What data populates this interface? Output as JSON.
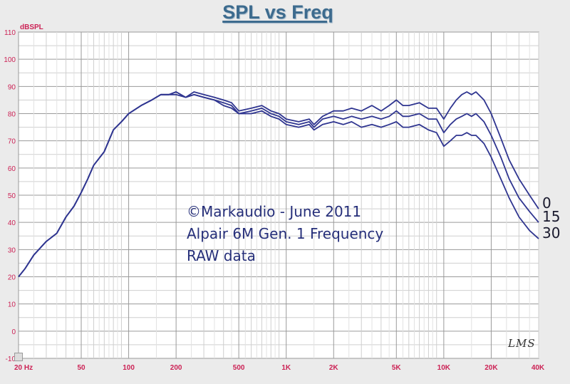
{
  "chart_data": {
    "type": "line",
    "title": "SPL vs Freq",
    "ylabel": "dBSPL",
    "ylim": [
      -10,
      110
    ],
    "xlim": [
      20,
      40000
    ],
    "xscale": "log",
    "grid": true,
    "y_ticks": [
      "110",
      "100",
      "90",
      "80",
      "70",
      "60",
      "50",
      "40",
      "30",
      "20",
      "10",
      "0",
      "-10"
    ],
    "x_ticks": [
      {
        "f": 20,
        "label": "20 Hz"
      },
      {
        "f": 50,
        "label": "50"
      },
      {
        "f": 100,
        "label": "100"
      },
      {
        "f": 200,
        "label": "200"
      },
      {
        "f": 500,
        "label": "500"
      },
      {
        "f": 1000,
        "label": "1K"
      },
      {
        "f": 2000,
        "label": "2K"
      },
      {
        "f": 5000,
        "label": "5K"
      },
      {
        "f": 10000,
        "label": "10K"
      },
      {
        "f": 20000,
        "label": "20K"
      },
      {
        "f": 40000,
        "label": "40K"
      }
    ],
    "series": [
      {
        "name": "0",
        "color": "#2f3590",
        "points": [
          [
            20,
            20
          ],
          [
            22,
            23
          ],
          [
            25,
            28
          ],
          [
            30,
            33
          ],
          [
            35,
            36
          ],
          [
            40,
            42
          ],
          [
            45,
            46
          ],
          [
            50,
            51
          ],
          [
            55,
            56
          ],
          [
            60,
            61
          ],
          [
            70,
            66
          ],
          [
            80,
            74
          ],
          [
            90,
            77
          ],
          [
            100,
            80
          ],
          [
            120,
            83
          ],
          [
            140,
            85
          ],
          [
            160,
            87
          ],
          [
            180,
            87
          ],
          [
            200,
            88
          ],
          [
            230,
            86
          ],
          [
            260,
            88
          ],
          [
            300,
            87
          ],
          [
            350,
            86
          ],
          [
            400,
            85
          ],
          [
            450,
            84
          ],
          [
            500,
            81
          ],
          [
            600,
            82
          ],
          [
            700,
            83
          ],
          [
            800,
            81
          ],
          [
            900,
            80
          ],
          [
            1000,
            78
          ],
          [
            1200,
            77
          ],
          [
            1400,
            78
          ],
          [
            1500,
            76
          ],
          [
            1700,
            79
          ],
          [
            2000,
            81
          ],
          [
            2300,
            81
          ],
          [
            2600,
            82
          ],
          [
            3000,
            81
          ],
          [
            3500,
            83
          ],
          [
            4000,
            81
          ],
          [
            4500,
            83
          ],
          [
            5000,
            85
          ],
          [
            5500,
            83
          ],
          [
            6000,
            83
          ],
          [
            7000,
            84
          ],
          [
            8000,
            82
          ],
          [
            9000,
            82
          ],
          [
            10000,
            78
          ],
          [
            11000,
            82
          ],
          [
            12000,
            85
          ],
          [
            13000,
            87
          ],
          [
            14000,
            88
          ],
          [
            15000,
            87
          ],
          [
            16000,
            88
          ],
          [
            18000,
            85
          ],
          [
            20000,
            80
          ],
          [
            23000,
            71
          ],
          [
            26000,
            63
          ],
          [
            30000,
            56
          ],
          [
            35000,
            50
          ],
          [
            40000,
            45
          ]
        ]
      },
      {
        "name": "15",
        "color": "#2f3590",
        "points": [
          [
            20,
            20
          ],
          [
            22,
            23
          ],
          [
            25,
            28
          ],
          [
            30,
            33
          ],
          [
            35,
            36
          ],
          [
            40,
            42
          ],
          [
            45,
            46
          ],
          [
            50,
            51
          ],
          [
            55,
            56
          ],
          [
            60,
            61
          ],
          [
            70,
            66
          ],
          [
            80,
            74
          ],
          [
            90,
            77
          ],
          [
            100,
            80
          ],
          [
            120,
            83
          ],
          [
            140,
            85
          ],
          [
            160,
            87
          ],
          [
            180,
            87
          ],
          [
            200,
            88
          ],
          [
            230,
            86
          ],
          [
            260,
            87
          ],
          [
            300,
            86
          ],
          [
            350,
            85
          ],
          [
            400,
            84
          ],
          [
            450,
            83
          ],
          [
            500,
            80
          ],
          [
            600,
            81
          ],
          [
            700,
            82
          ],
          [
            800,
            80
          ],
          [
            900,
            79
          ],
          [
            1000,
            77
          ],
          [
            1200,
            76
          ],
          [
            1400,
            77
          ],
          [
            1500,
            75
          ],
          [
            1700,
            78
          ],
          [
            2000,
            79
          ],
          [
            2300,
            78
          ],
          [
            2600,
            79
          ],
          [
            3000,
            78
          ],
          [
            3500,
            79
          ],
          [
            4000,
            78
          ],
          [
            4500,
            79
          ],
          [
            5000,
            81
          ],
          [
            5500,
            79
          ],
          [
            6000,
            79
          ],
          [
            7000,
            80
          ],
          [
            8000,
            78
          ],
          [
            9000,
            78
          ],
          [
            10000,
            73
          ],
          [
            11000,
            76
          ],
          [
            12000,
            78
          ],
          [
            13000,
            79
          ],
          [
            14000,
            80
          ],
          [
            15000,
            79
          ],
          [
            16000,
            80
          ],
          [
            18000,
            77
          ],
          [
            20000,
            72
          ],
          [
            23000,
            64
          ],
          [
            26000,
            56
          ],
          [
            30000,
            49
          ],
          [
            35000,
            44
          ],
          [
            40000,
            40
          ]
        ]
      },
      {
        "name": "30",
        "color": "#2f3590",
        "points": [
          [
            20,
            20
          ],
          [
            22,
            23
          ],
          [
            25,
            28
          ],
          [
            30,
            33
          ],
          [
            35,
            36
          ],
          [
            40,
            42
          ],
          [
            45,
            46
          ],
          [
            50,
            51
          ],
          [
            55,
            56
          ],
          [
            60,
            61
          ],
          [
            70,
            66
          ],
          [
            80,
            74
          ],
          [
            90,
            77
          ],
          [
            100,
            80
          ],
          [
            120,
            83
          ],
          [
            140,
            85
          ],
          [
            160,
            87
          ],
          [
            180,
            87
          ],
          [
            200,
            87
          ],
          [
            230,
            86
          ],
          [
            260,
            87
          ],
          [
            300,
            86
          ],
          [
            350,
            85
          ],
          [
            400,
            83
          ],
          [
            450,
            82
          ],
          [
            500,
            80
          ],
          [
            600,
            80
          ],
          [
            700,
            81
          ],
          [
            800,
            79
          ],
          [
            900,
            78
          ],
          [
            1000,
            76
          ],
          [
            1200,
            75
          ],
          [
            1400,
            76
          ],
          [
            1500,
            74
          ],
          [
            1700,
            76
          ],
          [
            2000,
            77
          ],
          [
            2300,
            76
          ],
          [
            2600,
            77
          ],
          [
            3000,
            75
          ],
          [
            3500,
            76
          ],
          [
            4000,
            75
          ],
          [
            4500,
            76
          ],
          [
            5000,
            77
          ],
          [
            5500,
            75
          ],
          [
            6000,
            75
          ],
          [
            7000,
            76
          ],
          [
            8000,
            74
          ],
          [
            9000,
            73
          ],
          [
            10000,
            68
          ],
          [
            11000,
            70
          ],
          [
            12000,
            72
          ],
          [
            13000,
            72
          ],
          [
            14000,
            73
          ],
          [
            15000,
            72
          ],
          [
            16000,
            72
          ],
          [
            18000,
            69
          ],
          [
            20000,
            64
          ],
          [
            23000,
            56
          ],
          [
            26000,
            49
          ],
          [
            30000,
            42
          ],
          [
            35000,
            37
          ],
          [
            40000,
            34
          ]
        ]
      }
    ]
  },
  "annotations": {
    "line1": "©Markaudio - June 2011",
    "line2": "Alpair 6M Gen. 1 Frequency",
    "line3": "RAW data"
  },
  "watermark": "LMS"
}
